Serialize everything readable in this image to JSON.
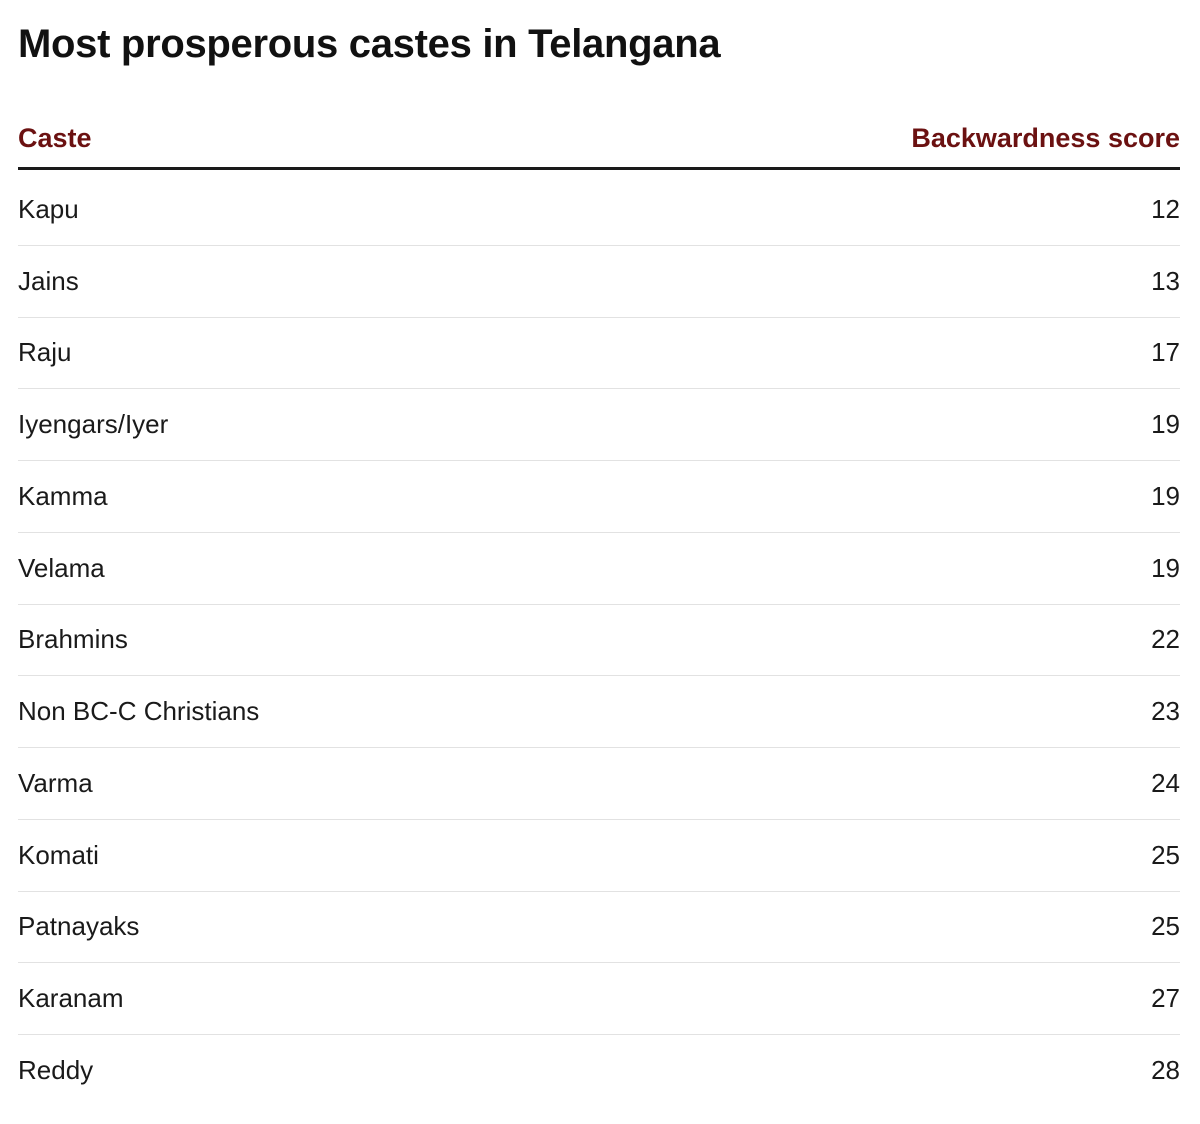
{
  "chart_data": {
    "type": "table",
    "title": "Most prosperous castes in Telangana",
    "columns": [
      "Caste",
      "Backwardness score"
    ],
    "rows": [
      {
        "caste": "Kapu",
        "score": 12
      },
      {
        "caste": "Jains",
        "score": 13
      },
      {
        "caste": "Raju",
        "score": 17
      },
      {
        "caste": "Iyengars/Iyer",
        "score": 19
      },
      {
        "caste": "Kamma",
        "score": 19
      },
      {
        "caste": "Velama",
        "score": 19
      },
      {
        "caste": "Brahmins",
        "score": 22
      },
      {
        "caste": "Non BC-C Christians",
        "score": 23
      },
      {
        "caste": "Varma",
        "score": 24
      },
      {
        "caste": "Komati",
        "score": 25
      },
      {
        "caste": "Patnayaks",
        "score": 25
      },
      {
        "caste": "Karanam",
        "score": 27
      },
      {
        "caste": "Reddy",
        "score": 28
      }
    ],
    "header_color": "#6b1111"
  }
}
